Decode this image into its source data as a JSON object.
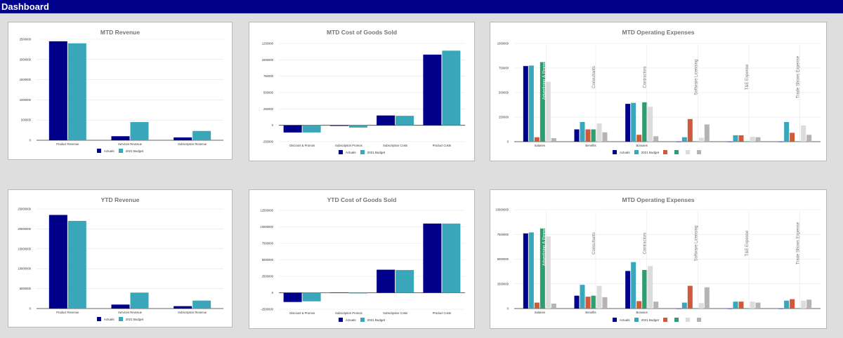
{
  "header": {
    "title": "Dashboard"
  },
  "colors": {
    "actuals": "#00008b",
    "budget": "#3aa6b9",
    "orange": "#cd5a3a",
    "green": "#2e9e6e",
    "lightgray": "#dcdcdc",
    "gray": "#b4b4b4",
    "topbar": "#00008b"
  },
  "legend": {
    "actuals": "Actuals",
    "budget": "2021 Budget"
  },
  "charts": [
    {
      "id": "mtd-revenue",
      "title": "MTD Revenue",
      "chart_data": {
        "type": "bar",
        "categories": [
          "Product Revenue",
          "Services Revenue",
          "Subscription Revenue"
        ],
        "series": [
          {
            "name": "Actuals",
            "values": [
              2450000,
              100000,
              70000
            ]
          },
          {
            "name": "2021 Budget",
            "values": [
              2400000,
              450000,
              230000
            ]
          }
        ],
        "ylim": [
          0,
          2500000
        ],
        "yticks": [
          0,
          500000,
          1000000,
          1500000,
          2000000,
          2500000
        ],
        "ytick_labels": [
          "0",
          "500000",
          "1000000",
          "1500000",
          "2000000",
          "2500000"
        ]
      }
    },
    {
      "id": "mtd-cogs",
      "title": "MTD Cost of Goods Sold",
      "chart_data": {
        "type": "bar",
        "categories": [
          "Discount & Promos",
          "Subscription Promos",
          "Subscription Costs",
          "Product Costs"
        ],
        "series": [
          {
            "name": "Actuals",
            "values": [
              -110000,
              -10000,
              150000,
              1080000
            ]
          },
          {
            "name": "2021 Budget",
            "values": [
              -110000,
              -35000,
              145000,
              1140000
            ]
          }
        ],
        "ylim": [
          -250000,
          1250000
        ],
        "yticks": [
          -250000,
          0,
          250000,
          500000,
          750000,
          1000000,
          1250000
        ],
        "ytick_labels": [
          "-250000",
          "0",
          "250000",
          "500000",
          "750000",
          "1000000",
          "1250000"
        ]
      }
    },
    {
      "id": "mtd-opex",
      "title": "MTD Operating Expenses",
      "chart_data": {
        "type": "bar",
        "categories": [
          "Salaries",
          "Benefits",
          "Bonuses",
          "",
          "",
          ""
        ],
        "series": [
          {
            "name": "Actuals",
            "values": [
              770000,
              125000,
              385000,
              0,
              0,
              0
            ]
          },
          {
            "name": "2021 Budget",
            "values": [
              775000,
              200000,
              395000,
              45000,
              65000,
              200000
            ]
          },
          {
            "values": [
              45000,
              125000,
              70000,
              230000,
              65000,
              90000
            ]
          },
          {
            "values": [
              810000,
              125000,
              400000,
              0,
              0,
              0
            ]
          },
          {
            "values": [
              610000,
              185000,
              355000,
              40000,
              50000,
              165000
            ]
          },
          {
            "values": [
              35000,
              95000,
              55000,
              175000,
              45000,
              70000
            ]
          }
        ],
        "annotations": [
          "Advertising & Promotion",
          "Consultants",
          "Contractors",
          "Software Licensing",
          "T&E Expense",
          "Trade Shows Expense"
        ],
        "ylim": [
          0,
          1000000
        ],
        "yticks": [
          0,
          250000,
          500000,
          750000,
          1000000
        ],
        "ytick_labels": [
          "0",
          "250000",
          "500000",
          "750000",
          "1000000"
        ]
      }
    },
    {
      "id": "ytd-revenue",
      "title": "YTD Revenue",
      "chart_data": {
        "type": "bar",
        "categories": [
          "Product Revenue",
          "Services Revenue",
          "Subscription Revenue"
        ],
        "series": [
          {
            "name": "Actuals",
            "values": [
              23500000,
              1000000,
              600000
            ]
          },
          {
            "name": "2021 Budget",
            "values": [
              22000000,
              4000000,
              2000000
            ]
          }
        ],
        "ylim": [
          0,
          25000000
        ],
        "yticks": [
          0,
          5000000,
          10000000,
          15000000,
          20000000,
          25000000
        ],
        "ytick_labels": [
          "0",
          "5000000",
          "10000000",
          "15000000",
          "20000000",
          "25000000"
        ]
      }
    },
    {
      "id": "ytd-cogs",
      "title": "YTD Cost of Goods Sold",
      "chart_data": {
        "type": "bar",
        "categories": [
          "Discount & Promos",
          "Subscription Promos",
          "Subscription Costs",
          "Product Costs"
        ],
        "series": [
          {
            "name": "Actuals",
            "values": [
              -1400000,
              -50000,
              3500000,
              10500000
            ]
          },
          {
            "name": "2021 Budget",
            "values": [
              -1300000,
              -100000,
              3450000,
              10500000
            ]
          }
        ],
        "ylim": [
          -2500000,
          12500000
        ],
        "yticks": [
          -2500000,
          0,
          2500000,
          5000000,
          7500000,
          10000000,
          12500000
        ],
        "ytick_labels": [
          "-2500000",
          "0",
          "2500000",
          "5000000",
          "7500000",
          "10000000",
          "12500000"
        ]
      }
    },
    {
      "id": "ytd-opex",
      "title": "MTD Operating Expenses",
      "chart_data": {
        "type": "bar",
        "categories": [
          "Salaries",
          "Benefits",
          "Bonuses",
          "",
          "",
          ""
        ],
        "series": [
          {
            "name": "Actuals",
            "values": [
              7600000,
              1300000,
              3800000,
              0,
              0,
              0
            ]
          },
          {
            "name": "2021 Budget",
            "values": [
              7700000,
              2400000,
              4700000,
              600000,
              700000,
              800000
            ]
          },
          {
            "values": [
              600000,
              1200000,
              750000,
              2300000,
              700000,
              950000
            ]
          },
          {
            "values": [
              8100000,
              1300000,
              3900000,
              0,
              0,
              0
            ]
          },
          {
            "values": [
              7300000,
              2300000,
              4300000,
              550000,
              700000,
              800000
            ]
          },
          {
            "values": [
              500000,
              1150000,
              700000,
              2150000,
              600000,
              900000
            ]
          }
        ],
        "annotations": [
          "Advertising & Promotion",
          "Consultants",
          "Contractors",
          "Software Licensing",
          "T&E Expense",
          "Trade Shows Expense"
        ],
        "ylim": [
          0,
          10000000
        ],
        "yticks": [
          0,
          2500000,
          5000000,
          7500000,
          10000000
        ],
        "ytick_labels": [
          "0",
          "2500000",
          "5000000",
          "7500000",
          "10000000"
        ]
      }
    }
  ]
}
